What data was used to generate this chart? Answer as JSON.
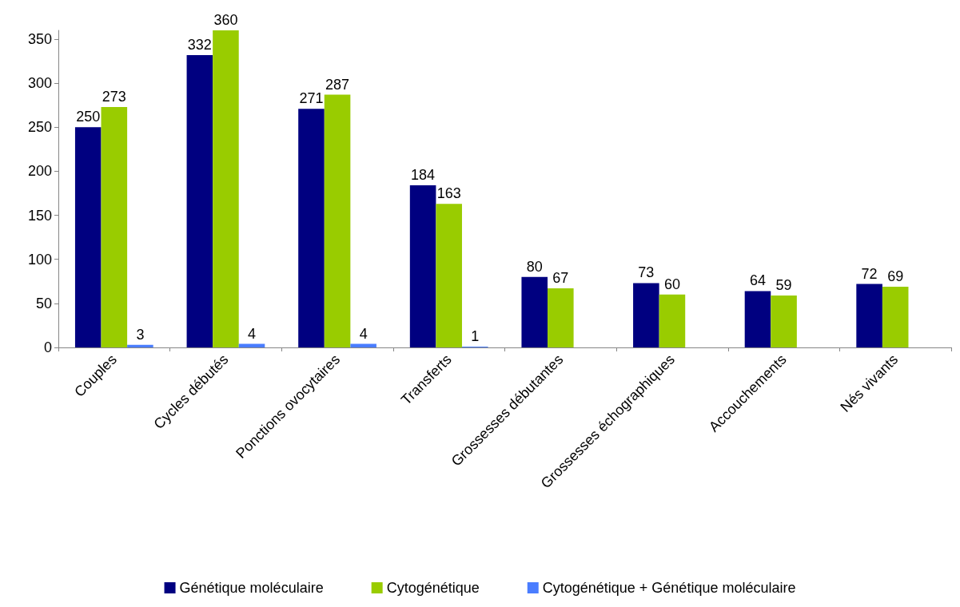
{
  "chart_data": {
    "type": "bar",
    "categories": [
      "Couples",
      "Cycles débutés",
      "Ponctions ovocytaires",
      "Transferts",
      "Grossesses débutantes",
      "Grossesses échographiques",
      "Accouchements",
      "Nés vivants"
    ],
    "series": [
      {
        "name": "Génétique moléculaire",
        "color": "#000080",
        "values": [
          250,
          332,
          271,
          184,
          80,
          73,
          64,
          72
        ]
      },
      {
        "name": "Cytogénétique",
        "color": "#99cc00",
        "values": [
          273,
          360,
          287,
          163,
          67,
          60,
          59,
          69
        ]
      },
      {
        "name": "Cytogénétique + Génétique moléculaire",
        "color": "#4a7dff",
        "values": [
          3,
          4,
          4,
          1,
          null,
          null,
          null,
          null
        ]
      }
    ],
    "ylim": [
      0,
      360
    ],
    "yticks": [
      0,
      50,
      100,
      150,
      200,
      250,
      300,
      350
    ],
    "grid": false,
    "legend": "bottom",
    "data_labels": true
  }
}
